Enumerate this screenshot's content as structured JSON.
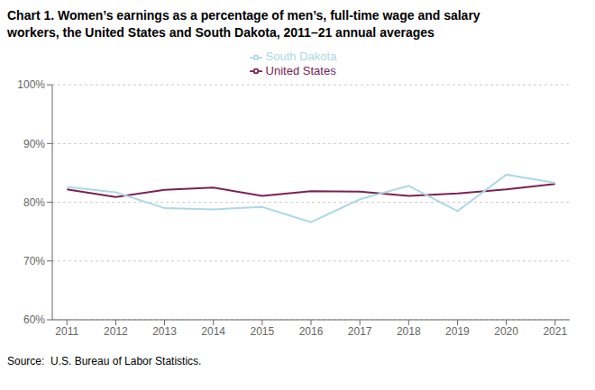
{
  "chart_data": {
    "type": "line",
    "title": "Chart 1. Women’s earnings as a percentage of men’s, full-time wage and salary\nworkers, the United States and South Dakota, 2011–21 annual averages",
    "x": [
      2011,
      2012,
      2013,
      2014,
      2015,
      2016,
      2017,
      2018,
      2019,
      2020,
      2021
    ],
    "series": [
      {
        "name": "United States",
        "color": "#7B2155",
        "values": [
          82.2,
          80.9,
          82.1,
          82.5,
          81.1,
          81.9,
          81.8,
          81.1,
          81.5,
          82.2,
          83.1
        ]
      },
      {
        "name": "South Dakota",
        "color": "#ADD8E6",
        "values": [
          82.6,
          81.7,
          79.0,
          78.8,
          79.2,
          76.6,
          80.5,
          82.8,
          78.5,
          84.7,
          83.3
        ]
      }
    ],
    "xlim": [
      2010.7,
      2021.3
    ],
    "xticks": [
      2011,
      2012,
      2013,
      2014,
      2015,
      2016,
      2017,
      2018,
      2019,
      2020,
      2021
    ],
    "ylim": [
      60,
      100
    ],
    "yticks": [
      {
        "value": 60,
        "label": "60%"
      },
      {
        "value": 70,
        "label": "70%"
      },
      {
        "value": 80,
        "label": "80%"
      },
      {
        "value": 90,
        "label": "90%"
      },
      {
        "value": 100,
        "label": "100%"
      }
    ],
    "grid": true,
    "legend": "top",
    "annotations": [
      "Source:  U.S. Bureau of Labor Statistics."
    ]
  }
}
